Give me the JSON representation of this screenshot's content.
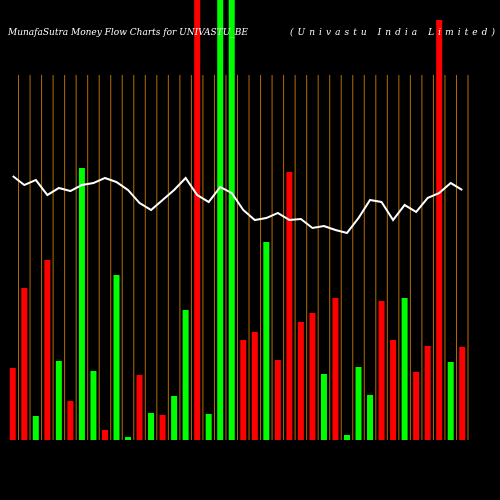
{
  "chart_data": {
    "type": "bar",
    "title": "MunafaSutra  Money  Flow  Charts for UNIVASTU_BE",
    "subtitle": "(Univastu India Limited)",
    "values": [
      72,
      152,
      24,
      180,
      79,
      39,
      272,
      69,
      10,
      165,
      3,
      65,
      27,
      25,
      44,
      130,
      460,
      26,
      460,
      460,
      100,
      108,
      198,
      80,
      268,
      118,
      127,
      66,
      142,
      5,
      73,
      45,
      139,
      100,
      142,
      68,
      94,
      420,
      78,
      93
    ],
    "colors": [
      "#ff0000",
      "#ff0000",
      "#00ff00",
      "#ff0000",
      "#00ff00",
      "#ff0000",
      "#00ff00",
      "#00ff00",
      "#ff0000",
      "#00ff00",
      "#00ff00",
      "#ff0000",
      "#00ff00",
      "#ff0000",
      "#00ff00",
      "#00ff00",
      "#ff0000",
      "#00ff00",
      "#00ff00",
      "#00ff00",
      "#ff0000",
      "#ff0000",
      "#00ff00",
      "#ff0000",
      "#ff0000",
      "#ff0000",
      "#ff0000",
      "#00ff00",
      "#ff0000",
      "#00ff00",
      "#00ff00",
      "#00ff00",
      "#ff0000",
      "#ff0000",
      "#00ff00",
      "#ff0000",
      "#ff0000",
      "#ff0000",
      "#00ff00",
      "#ff0000"
    ],
    "line_values": [
      264,
      255,
      260,
      245,
      252,
      249,
      255,
      257,
      262,
      258,
      250,
      237,
      230,
      240,
      250,
      262,
      245,
      238,
      253,
      247,
      230,
      220,
      222,
      227,
      220,
      221,
      212,
      214,
      210,
      207,
      222,
      240,
      238,
      220,
      235,
      228,
      242,
      247,
      257,
      250
    ],
    "line_color": "#ffffff",
    "grid_color": "#b36b00",
    "ylim": [
      0,
      440
    ]
  }
}
